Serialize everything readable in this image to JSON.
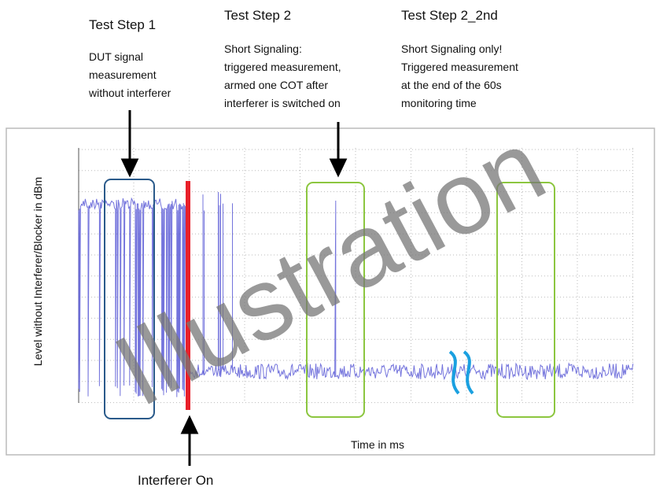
{
  "steps": [
    {
      "title": "Test Step 1",
      "lines": [
        "DUT signal",
        "measurement",
        "without interferer"
      ]
    },
    {
      "title": "Test Step 2",
      "lines": [
        "Short Signaling:",
        "triggered measurement,",
        "armed one COT after",
        "interferer is switched on"
      ]
    },
    {
      "title": "Test Step 2_2nd",
      "lines": [
        "Short Signaling only!",
        "Triggered measurement",
        "at the end of the 60s",
        "monitoring time"
      ]
    }
  ],
  "y_axis_label": "Level without Interferer/Blocker in dBm",
  "x_axis_label": "Time in ms",
  "interferer_label": "Interferer On",
  "watermark": "Illustration"
}
